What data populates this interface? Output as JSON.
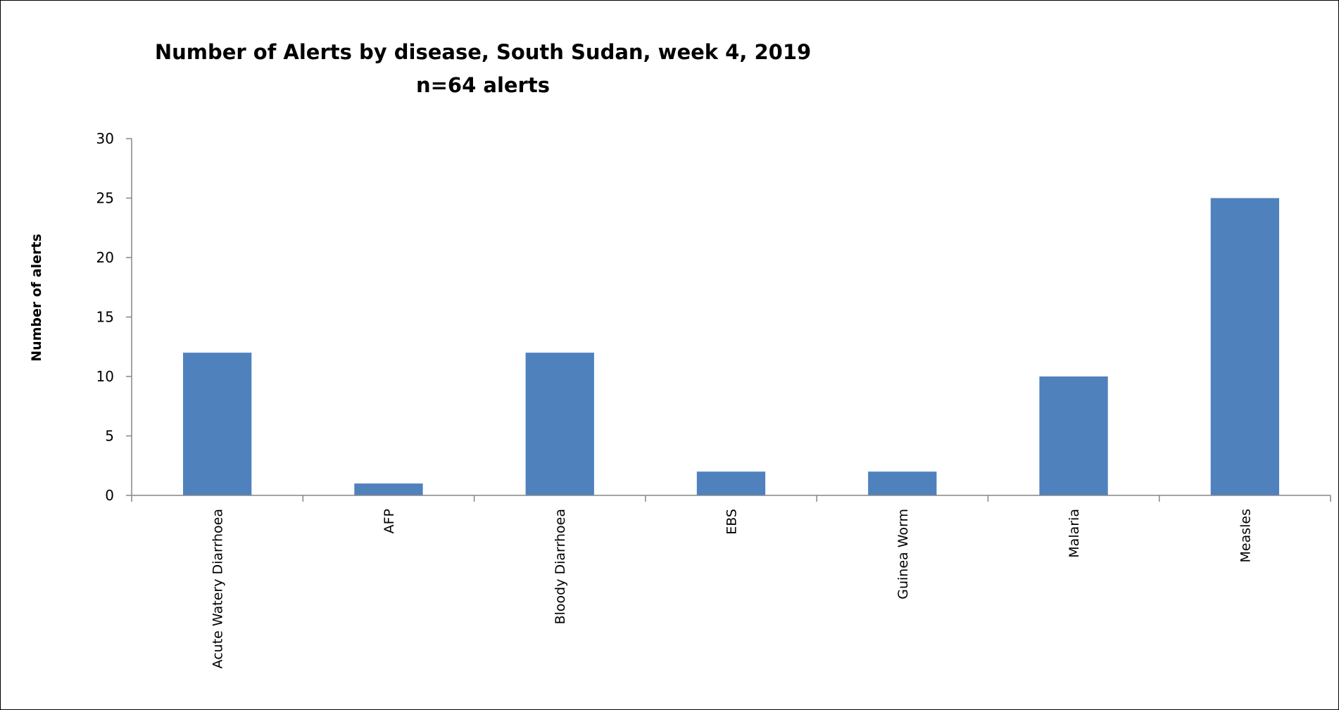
{
  "chart_data": {
    "type": "bar",
    "title": "Number of Alerts by disease, South Sudan, week 4, 2019",
    "subtitle": "n=64 alerts",
    "xlabel": "",
    "ylabel": "Number of alerts",
    "ylim": [
      0,
      30
    ],
    "yticks": [
      0,
      5,
      10,
      15,
      20,
      25,
      30
    ],
    "categories": [
      "Acute Watery Diarrhoea",
      "AFP",
      "Bloody Diarrhoea",
      "EBS",
      "Guinea Worm",
      "Malaria",
      "Measles"
    ],
    "values": [
      12,
      1,
      12,
      2,
      2,
      10,
      25
    ],
    "bar_color": "#4f81bd",
    "grid": false,
    "legend": "none"
  }
}
